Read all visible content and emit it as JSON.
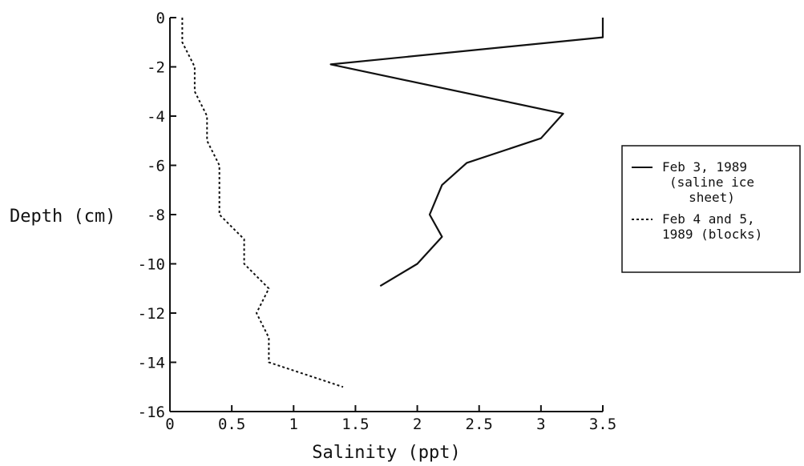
{
  "chart_data": {
    "type": "line",
    "title": "",
    "xlabel": "Salinity (ppt)",
    "ylabel": "Depth (cm)",
    "xlim": [
      0,
      3.5
    ],
    "ylim": [
      -16,
      0
    ],
    "x_ticks": [
      {
        "value": 0,
        "label": "0"
      },
      {
        "value": 0.5,
        "label": "0.5"
      },
      {
        "value": 1,
        "label": "1"
      },
      {
        "value": 1.5,
        "label": "1.5"
      },
      {
        "value": 2,
        "label": "2"
      },
      {
        "value": 2.5,
        "label": "2.5"
      },
      {
        "value": 3,
        "label": "3"
      },
      {
        "value": 3.5,
        "label": "3.5"
      }
    ],
    "y_ticks": [
      {
        "value": 0,
        "label": "0"
      },
      {
        "value": -2,
        "label": "-2"
      },
      {
        "value": -4,
        "label": "-4"
      },
      {
        "value": -6,
        "label": "-6"
      },
      {
        "value": -8,
        "label": "-8"
      },
      {
        "value": -10,
        "label": "-10"
      },
      {
        "value": -12,
        "label": "-12"
      },
      {
        "value": -14,
        "label": "-14"
      },
      {
        "value": -16,
        "label": "-16"
      }
    ],
    "grid": false,
    "legend_position": "right",
    "series": [
      {
        "name_lines": [
          "Feb 3, 1989",
          "(saline ice",
          "sheet)"
        ],
        "style": "solid",
        "color": "#111111",
        "points": [
          {
            "x": 3.5,
            "y": 0
          },
          {
            "x": 3.5,
            "y": -0.8
          },
          {
            "x": 1.3,
            "y": -1.9
          },
          {
            "x": 3.18,
            "y": -3.9
          },
          {
            "x": 3.0,
            "y": -4.9
          },
          {
            "x": 2.4,
            "y": -5.9
          },
          {
            "x": 2.2,
            "y": -6.8
          },
          {
            "x": 2.1,
            "y": -8.0
          },
          {
            "x": 2.2,
            "y": -8.9
          },
          {
            "x": 2.0,
            "y": -10.0
          },
          {
            "x": 1.7,
            "y": -10.9
          }
        ]
      },
      {
        "name_lines": [
          "Feb 4 and 5,",
          "1989 (blocks)"
        ],
        "style": "dotted",
        "color": "#111111",
        "points": [
          {
            "x": 0.1,
            "y": 0
          },
          {
            "x": 0.1,
            "y": -1.0
          },
          {
            "x": 0.2,
            "y": -2.0
          },
          {
            "x": 0.2,
            "y": -3.0
          },
          {
            "x": 0.3,
            "y": -4.0
          },
          {
            "x": 0.3,
            "y": -5.0
          },
          {
            "x": 0.4,
            "y": -6.0
          },
          {
            "x": 0.4,
            "y": -8.0
          },
          {
            "x": 0.6,
            "y": -9.0
          },
          {
            "x": 0.6,
            "y": -10.0
          },
          {
            "x": 0.8,
            "y": -11.0
          },
          {
            "x": 0.7,
            "y": -12.0
          },
          {
            "x": 0.8,
            "y": -13.0
          },
          {
            "x": 0.8,
            "y": -14.0
          },
          {
            "x": 1.4,
            "y": -15.0
          }
        ]
      }
    ]
  }
}
